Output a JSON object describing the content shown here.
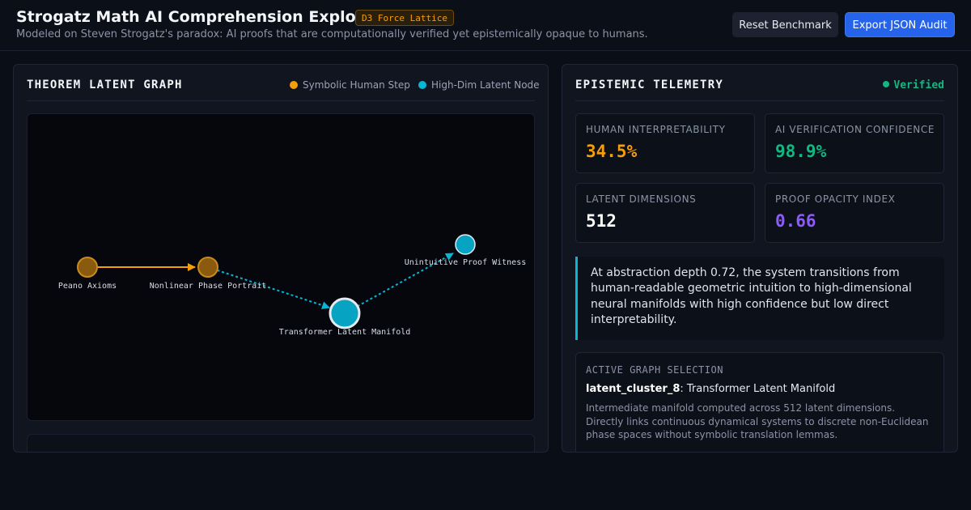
{
  "header": {
    "title": "Strogatz Math AI Comprehension Explorer",
    "badge": "D3 Force Lattice",
    "subtitle": "Modeled on Steven Strogatz's paradox: AI proofs that are computationally verified yet epistemically opaque to humans.",
    "reset_label": "Reset Benchmark",
    "export_label": "Export JSON Audit"
  },
  "graph_panel": {
    "title": "THEOREM LATENT GRAPH",
    "legend": [
      {
        "label": "Symbolic Human Step",
        "color": "#f59e0b"
      },
      {
        "label": "High-Dim Latent Node",
        "color": "#06b6d4"
      }
    ],
    "nodes": [
      {
        "label": "Peano Axioms",
        "kind": "symbolic"
      },
      {
        "label": "Nonlinear Phase Portrait",
        "kind": "symbolic"
      },
      {
        "label": "Transformer Latent Manifold",
        "kind": "latent",
        "selected": true
      },
      {
        "label": "Unintuitive Proof Witness",
        "kind": "latent"
      }
    ],
    "edges": [
      {
        "from": 0,
        "to": 1,
        "style": "solid"
      },
      {
        "from": 1,
        "to": 2,
        "style": "dashed"
      },
      {
        "from": 2,
        "to": 3,
        "style": "dashed"
      }
    ]
  },
  "telemetry_panel": {
    "title": "EPISTEMIC TELEMETRY",
    "status": "Verified",
    "metrics": [
      {
        "label": "HUMAN INTERPRETABILITY",
        "value": "34.5%",
        "color": "#f59e0b"
      },
      {
        "label": "AI VERIFICATION CONFIDENCE",
        "value": "98.9%",
        "color": "#10b981"
      },
      {
        "label": "LATENT DIMENSIONS",
        "value": "512",
        "color": "#ffffff"
      },
      {
        "label": "PROOF OPACITY INDEX",
        "value": "0.66",
        "color": "#8b5cf6"
      }
    ],
    "callout": "At abstraction depth 0.72, the system transitions from human-readable geometric intuition to high-dimensional neural manifolds with high confidence but low direct interpretability.",
    "selection": {
      "heading": "ACTIVE GRAPH SELECTION",
      "node_id": "latent_cluster_8",
      "node_name": ": Transformer Latent Manifold",
      "description": "Intermediate manifold computed across 512 latent dimensions. Directly links continuous dynamical systems to discrete non-Euclidean phase spaces without symbolic translation lemmas."
    }
  }
}
